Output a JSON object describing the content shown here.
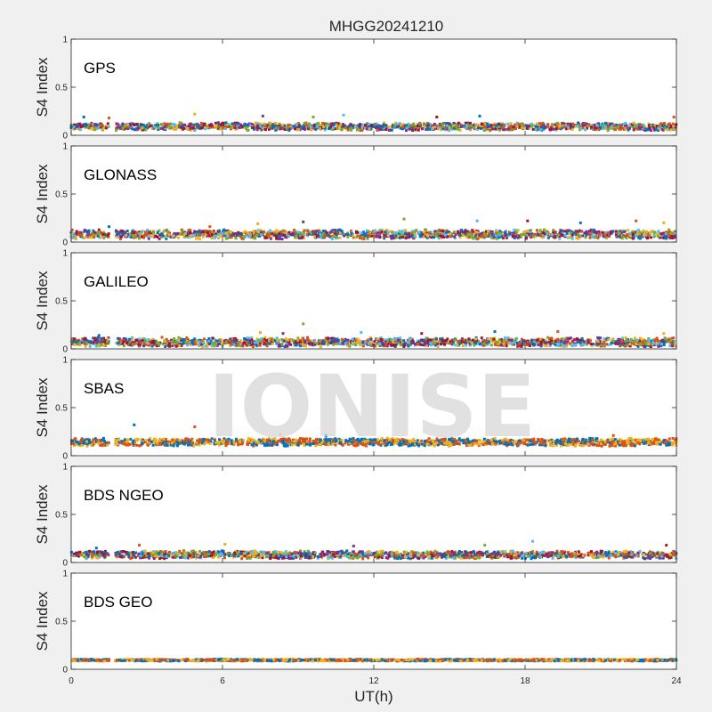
{
  "title": "MHGG20241210",
  "watermark": "IONISE",
  "chart_data": {
    "type": "scatter",
    "xlabel": "UT(h)",
    "xlim": [
      0,
      24
    ],
    "xticks": [
      0,
      6,
      12,
      18,
      24
    ],
    "ylabel": "S4 Index",
    "ylim": [
      0,
      1
    ],
    "yticks": [
      "0",
      "0.5",
      "1"
    ],
    "data_gap_hours": [
      1.5,
      1.75
    ],
    "series_colors": [
      "#0072BD",
      "#D95319",
      "#EDB120",
      "#7E2F8E",
      "#77AC30",
      "#4DBEEE",
      "#A2142F"
    ],
    "panels": [
      {
        "name": "GPS",
        "baseline": 0.09,
        "spread": 0.03,
        "ncolors": 7,
        "spikes": [
          [
            0.5,
            0.19
          ],
          [
            1.5,
            0.18
          ],
          [
            4.9,
            0.22
          ],
          [
            7.6,
            0.2
          ],
          [
            9.6,
            0.19
          ],
          [
            10.8,
            0.21
          ],
          [
            14.5,
            0.19
          ],
          [
            16.2,
            0.2
          ],
          [
            23.9,
            0.19
          ]
        ]
      },
      {
        "name": "GLONASS",
        "baseline": 0.08,
        "spread": 0.035,
        "ncolors": 7,
        "spikes": [
          [
            1.5,
            0.16
          ],
          [
            5.5,
            0.16
          ],
          [
            7.4,
            0.19
          ],
          [
            9.2,
            0.21
          ],
          [
            13.2,
            0.24
          ],
          [
            16.1,
            0.22
          ],
          [
            18.1,
            0.22
          ],
          [
            20.2,
            0.2
          ],
          [
            22.4,
            0.22
          ],
          [
            23.5,
            0.2
          ]
        ]
      },
      {
        "name": "GALILEO",
        "baseline": 0.07,
        "spread": 0.035,
        "ncolors": 7,
        "spikes": [
          [
            1.1,
            0.14
          ],
          [
            3.6,
            0.12
          ],
          [
            7.5,
            0.17
          ],
          [
            8.4,
            0.16
          ],
          [
            9.2,
            0.26
          ],
          [
            11.5,
            0.17
          ],
          [
            13.9,
            0.16
          ],
          [
            16.8,
            0.18
          ],
          [
            19.3,
            0.18
          ],
          [
            23.5,
            0.16
          ]
        ]
      },
      {
        "name": "SBAS",
        "baseline": 0.14,
        "spread": 0.03,
        "ncolors": 3,
        "spikes": [
          [
            2.5,
            0.32
          ],
          [
            4.9,
            0.3
          ],
          [
            8.3,
            0.22
          ],
          [
            10.1,
            0.21
          ],
          [
            21.5,
            0.21
          ]
        ]
      },
      {
        "name": "BDS NGEO",
        "baseline": 0.08,
        "spread": 0.03,
        "ncolors": 7,
        "spikes": [
          [
            1.0,
            0.15
          ],
          [
            2.7,
            0.18
          ],
          [
            6.1,
            0.19
          ],
          [
            11.2,
            0.17
          ],
          [
            16.4,
            0.18
          ],
          [
            18.3,
            0.22
          ],
          [
            23.6,
            0.18
          ]
        ]
      },
      {
        "name": "BDS GEO",
        "baseline": 0.095,
        "spread": 0.008,
        "ncolors": 3,
        "spikes": []
      }
    ]
  }
}
